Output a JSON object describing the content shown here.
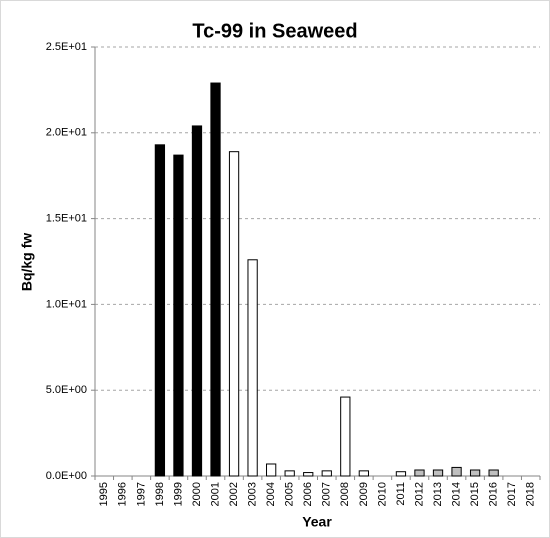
{
  "chart_data": {
    "type": "bar",
    "title": "Tc-99 in Seaweed",
    "x_label": "Year",
    "y_label": "Bq/kg fw",
    "categories": [
      "1995",
      "1996",
      "1997",
      "1998",
      "1999",
      "2000",
      "2001",
      "2002",
      "2003",
      "2004",
      "2005",
      "2006",
      "2007",
      "2008",
      "2009",
      "2010",
      "2011",
      "2012",
      "2013",
      "2014",
      "2015",
      "2016",
      "2017",
      "2018"
    ],
    "values": [
      null,
      null,
      null,
      19.3,
      18.7,
      20.4,
      22.9,
      18.9,
      12.6,
      0.7,
      0.3,
      0.2,
      0.3,
      4.6,
      0.3,
      null,
      0.25,
      0.35,
      0.35,
      0.5,
      0.35,
      0.35,
      null,
      null
    ],
    "colors": [
      null,
      null,
      null,
      "#000000",
      "#000000",
      "#000000",
      "#000000",
      "#ffffff",
      "#ffffff",
      "#ffffff",
      "#ffffff",
      "#ffffff",
      "#ffffff",
      "#ffffff",
      "#ffffff",
      null,
      "#ffffff",
      "#bfbfbf",
      "#bfbfbf",
      "#bfbfbf",
      "#bfbfbf",
      "#bfbfbf",
      null,
      null
    ],
    "ylim": [
      0,
      25
    ],
    "yticks": [
      {
        "value": 0,
        "label": "0.0E+00"
      },
      {
        "value": 5,
        "label": "5.0E+00"
      },
      {
        "value": 10,
        "label": "1.0E+01"
      },
      {
        "value": 15,
        "label": "1.5E+01"
      },
      {
        "value": 20,
        "label": "2.0E+01"
      },
      {
        "value": 25,
        "label": "2.5E+01"
      }
    ],
    "grid": true
  }
}
